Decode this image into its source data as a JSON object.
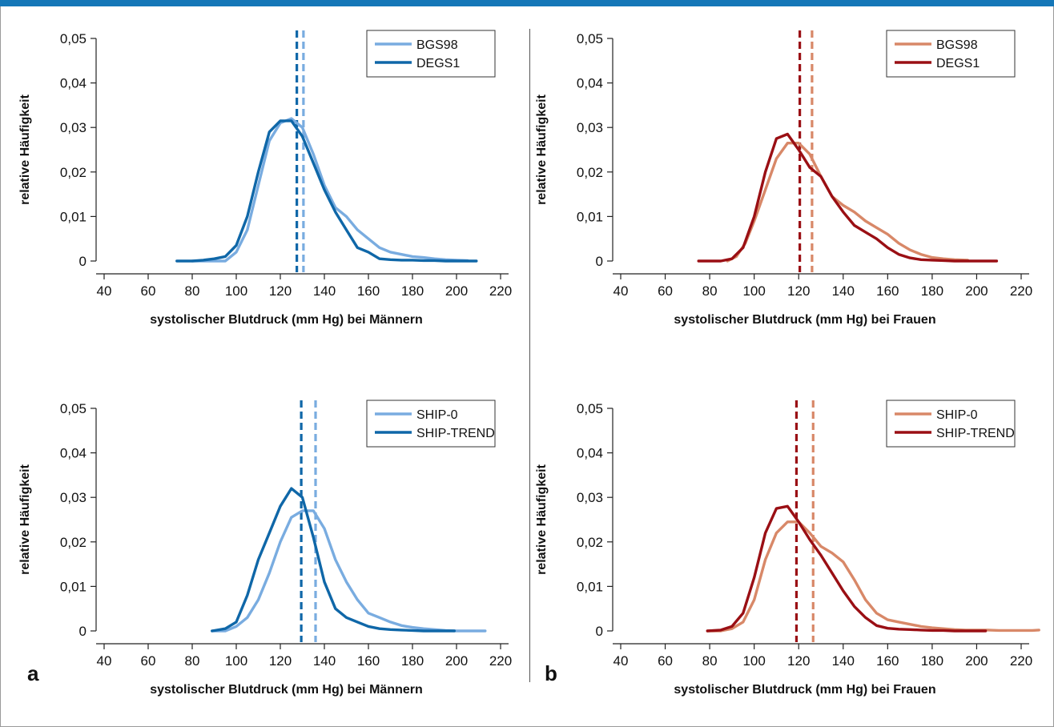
{
  "colors": {
    "top_bar": "#1577b8",
    "men_light": "#79ace0",
    "men_dark": "#0f67a8",
    "women_light": "#d88868",
    "women_dark": "#9a0f14"
  },
  "panel_labels": [
    "a",
    "b"
  ],
  "chart_data": [
    {
      "type": "line",
      "xlabel": "systolischer Blutdruck (mm Hg) bei Männern",
      "ylabel": "relative Häufigkeit",
      "xlim": [
        40,
        220
      ],
      "ylim": [
        0,
        0.05
      ],
      "x_ticks": [
        40,
        60,
        80,
        100,
        120,
        140,
        160,
        180,
        200,
        220
      ],
      "x_tick_labels": [
        "40",
        "60",
        "80",
        "100",
        "120",
        "140",
        "160",
        "180",
        "200",
        "220"
      ],
      "y_ticks": [
        0,
        0.01,
        0.02,
        0.03,
        0.04,
        0.05
      ],
      "y_tick_labels": [
        "0",
        "0,01",
        "0,02",
        "0,03",
        "0,04",
        "0,05"
      ],
      "legend_position": "top-right",
      "series": [
        {
          "name": "BGS98",
          "color": "#79ace0",
          "x": [
            80,
            85,
            90,
            95,
            100,
            105,
            110,
            115,
            120,
            125,
            130,
            135,
            140,
            145,
            150,
            155,
            160,
            165,
            170,
            175,
            180,
            185,
            190,
            195,
            200,
            205
          ],
          "y": [
            0,
            0,
            0,
            0,
            0.002,
            0.007,
            0.017,
            0.027,
            0.031,
            0.032,
            0.03,
            0.024,
            0.017,
            0.012,
            0.01,
            0.007,
            0.005,
            0.003,
            0.002,
            0.0015,
            0.001,
            0.0008,
            0.0005,
            0.0003,
            0.0002,
            0.0001
          ],
          "mean": 130.5
        },
        {
          "name": "DEGS1",
          "color": "#0f67a8",
          "x": [
            73,
            80,
            85,
            90,
            95,
            100,
            105,
            110,
            115,
            120,
            125,
            130,
            135,
            140,
            145,
            150,
            155,
            160,
            165,
            170,
            175,
            180,
            185,
            190,
            195,
            200,
            205,
            209
          ],
          "y": [
            0,
            0,
            0.0002,
            0.0005,
            0.001,
            0.0035,
            0.01,
            0.02,
            0.029,
            0.0315,
            0.0315,
            0.028,
            0.022,
            0.016,
            0.011,
            0.007,
            0.003,
            0.002,
            0.0005,
            0.0003,
            0.0002,
            0.0002,
            0.0001,
            0.0001,
            0,
            0,
            0,
            0
          ],
          "mean": 127.5
        }
      ]
    },
    {
      "type": "line",
      "xlabel": "systolischer Blutdruck (mm Hg) bei Frauen",
      "ylabel": "relative Häufigkeit",
      "xlim": [
        40,
        220
      ],
      "ylim": [
        0,
        0.05
      ],
      "x_ticks": [
        40,
        60,
        80,
        100,
        120,
        140,
        160,
        180,
        200,
        220
      ],
      "x_tick_labels": [
        "40",
        "60",
        "80",
        "100",
        "120",
        "140",
        "160",
        "180",
        "200",
        "220"
      ],
      "y_ticks": [
        0,
        0.01,
        0.02,
        0.03,
        0.04,
        0.05
      ],
      "y_tick_labels": [
        "0",
        "0,01",
        "0,02",
        "0,03",
        "0,04",
        "0,05"
      ],
      "legend_position": "top-right",
      "series": [
        {
          "name": "BGS98",
          "color": "#d88868",
          "x": [
            88,
            92,
            96,
            100,
            105,
            110,
            115,
            120,
            125,
            130,
            135,
            140,
            145,
            150,
            155,
            160,
            165,
            170,
            175,
            180,
            185,
            190,
            196
          ],
          "y": [
            0,
            0.001,
            0.004,
            0.009,
            0.016,
            0.023,
            0.0265,
            0.0265,
            0.024,
            0.019,
            0.0145,
            0.0125,
            0.011,
            0.009,
            0.0075,
            0.006,
            0.004,
            0.0025,
            0.0015,
            0.0008,
            0.0005,
            0.0003,
            0.0002
          ],
          "mean": 126
        },
        {
          "name": "DEGS1",
          "color": "#9a0f14",
          "x": [
            75,
            80,
            85,
            90,
            95,
            100,
            105,
            110,
            115,
            120,
            125,
            130,
            135,
            140,
            145,
            150,
            155,
            160,
            165,
            170,
            175,
            180,
            185,
            190,
            195,
            200,
            205,
            209
          ],
          "y": [
            0,
            0,
            0,
            0.0005,
            0.003,
            0.01,
            0.02,
            0.0275,
            0.0285,
            0.025,
            0.021,
            0.019,
            0.0145,
            0.011,
            0.008,
            0.0065,
            0.005,
            0.003,
            0.0015,
            0.0007,
            0.0003,
            0.0002,
            0.0001,
            0,
            0,
            0,
            0,
            0
          ],
          "mean": 120.5
        }
      ]
    },
    {
      "type": "line",
      "xlabel": "systolischer Blutdruck (mm Hg) bei Männern",
      "ylabel": "relative Häufigkeit",
      "xlim": [
        40,
        220
      ],
      "ylim": [
        0,
        0.05
      ],
      "x_ticks": [
        40,
        60,
        80,
        100,
        120,
        140,
        160,
        180,
        200,
        220
      ],
      "x_tick_labels": [
        "40",
        "60",
        "80",
        "100",
        "120",
        "140",
        "160",
        "180",
        "200",
        "220"
      ],
      "y_ticks": [
        0,
        0.01,
        0.02,
        0.03,
        0.04,
        0.05
      ],
      "y_tick_labels": [
        "0",
        "0,01",
        "0,02",
        "0,03",
        "0,04",
        "0,05"
      ],
      "legend_position": "top-right",
      "series": [
        {
          "name": "SHIP-0",
          "color": "#79ace0",
          "x": [
            89,
            95,
            100,
            105,
            110,
            115,
            120,
            125,
            130,
            135,
            140,
            145,
            150,
            155,
            160,
            165,
            170,
            175,
            180,
            185,
            190,
            195,
            200,
            205,
            213
          ],
          "y": [
            0,
            0,
            0.001,
            0.003,
            0.007,
            0.013,
            0.02,
            0.0255,
            0.027,
            0.027,
            0.023,
            0.016,
            0.011,
            0.007,
            0.004,
            0.003,
            0.002,
            0.0012,
            0.0008,
            0.0005,
            0.0003,
            0.0001,
            0,
            0,
            0
          ],
          "mean": 136
        },
        {
          "name": "SHIP-TREND",
          "color": "#0f67a8",
          "x": [
            89,
            95,
            100,
            105,
            110,
            115,
            120,
            125,
            130,
            135,
            140,
            145,
            150,
            155,
            160,
            165,
            170,
            175,
            180,
            185,
            190,
            195,
            199
          ],
          "y": [
            0,
            0.0005,
            0.002,
            0.008,
            0.016,
            0.022,
            0.028,
            0.032,
            0.03,
            0.021,
            0.011,
            0.005,
            0.003,
            0.002,
            0.001,
            0.0005,
            0.0003,
            0.0002,
            0.0001,
            0,
            0,
            0,
            0
          ],
          "mean": 129.5
        }
      ]
    },
    {
      "type": "line",
      "xlabel": "systolischer Blutdruck (mm Hg) bei Frauen",
      "ylabel": "relative Häufigkeit",
      "xlim": [
        40,
        220
      ],
      "ylim": [
        0,
        0.05
      ],
      "x_ticks": [
        40,
        60,
        80,
        100,
        120,
        140,
        160,
        180,
        200,
        220
      ],
      "x_tick_labels": [
        "40",
        "60",
        "80",
        "100",
        "120",
        "140",
        "160",
        "180",
        "200",
        "220"
      ],
      "y_ticks": [
        0,
        0.01,
        0.02,
        0.03,
        0.04,
        0.05
      ],
      "y_tick_labels": [
        "0",
        "0,01",
        "0,02",
        "0,03",
        "0,04",
        "0,05"
      ],
      "legend_position": "top-right",
      "series": [
        {
          "name": "SHIP-0",
          "color": "#d88868",
          "x": [
            79,
            85,
            90,
            95,
            100,
            105,
            110,
            115,
            120,
            125,
            130,
            135,
            140,
            145,
            150,
            155,
            160,
            165,
            170,
            175,
            180,
            185,
            190,
            195,
            200,
            205,
            210,
            215,
            220,
            225,
            228
          ],
          "y": [
            0,
            0,
            0.0005,
            0.002,
            0.007,
            0.016,
            0.022,
            0.0245,
            0.0245,
            0.022,
            0.019,
            0.0175,
            0.0155,
            0.0115,
            0.007,
            0.004,
            0.0025,
            0.002,
            0.0015,
            0.001,
            0.0007,
            0.0005,
            0.0003,
            0.0002,
            0.0002,
            0.0002,
            0.0001,
            0.0001,
            0.0001,
            0.0001,
            0.0002
          ],
          "mean": 126.5
        },
        {
          "name": "SHIP-TREND",
          "color": "#9a0f14",
          "x": [
            79,
            85,
            90,
            95,
            100,
            105,
            110,
            115,
            120,
            125,
            130,
            135,
            140,
            145,
            150,
            155,
            160,
            165,
            170,
            175,
            180,
            185,
            190,
            195,
            200,
            204
          ],
          "y": [
            0,
            0.0002,
            0.001,
            0.004,
            0.012,
            0.022,
            0.0275,
            0.028,
            0.0245,
            0.0205,
            0.017,
            0.013,
            0.009,
            0.0055,
            0.003,
            0.0012,
            0.0006,
            0.0004,
            0.0003,
            0.0002,
            0.0001,
            0.0001,
            0,
            0,
            0,
            0
          ],
          "mean": 119
        }
      ]
    }
  ]
}
